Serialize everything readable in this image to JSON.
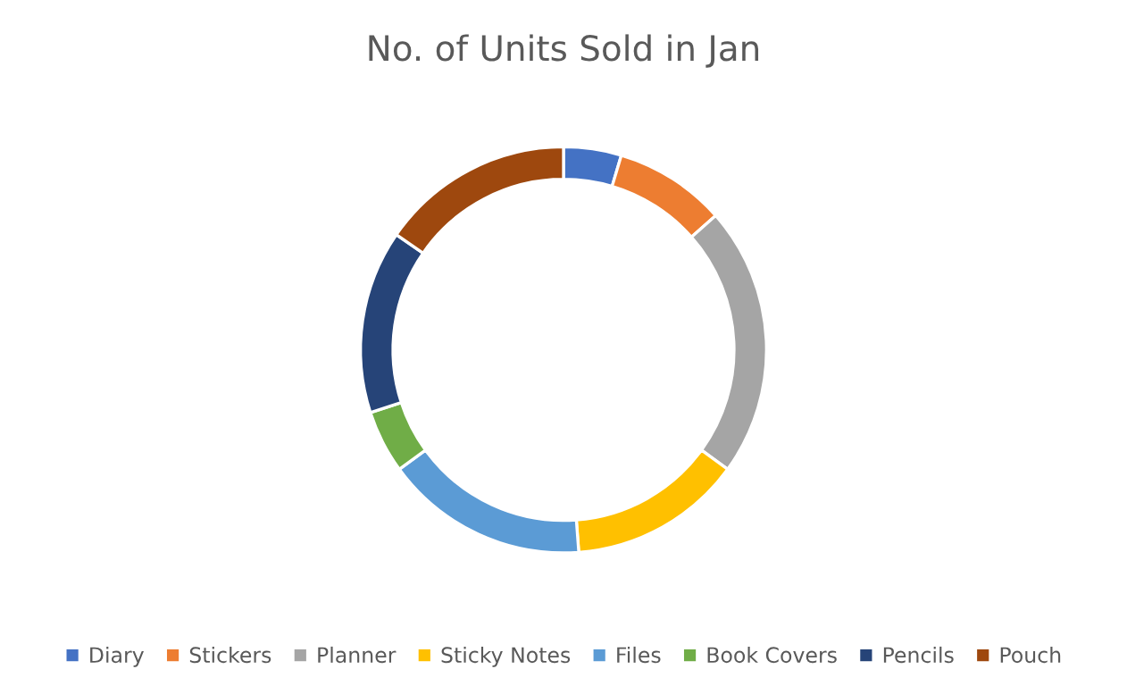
{
  "chart_data": {
    "type": "donut",
    "title": "No. of Units Sold in Jan",
    "categories": [
      "Diary",
      "Stickers",
      "Planner",
      "Sticky Notes",
      "Files",
      "Book Covers",
      "Pencils",
      "Pouch"
    ],
    "values": [
      4.6,
      8.9,
      21.5,
      13.8,
      16.2,
      5.0,
      14.6,
      15.4
    ],
    "colors": [
      "#4472c4",
      "#ed7d31",
      "#a5a5a5",
      "#ffc000",
      "#5b9bd5",
      "#70ad47",
      "#264478",
      "#9e480e"
    ],
    "legend": "bottom"
  }
}
